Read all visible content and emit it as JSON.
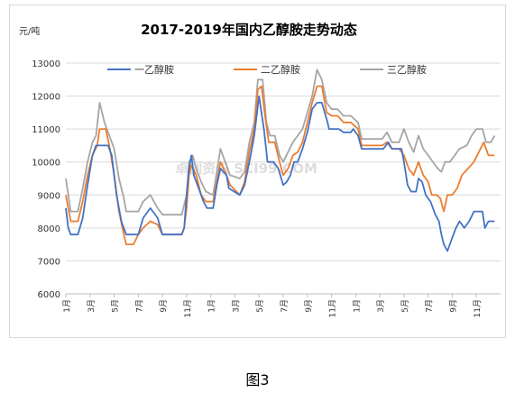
{
  "caption": "图3",
  "chart_data": {
    "type": "line",
    "title": "2017-2019年国内乙醇胺走势动态",
    "ylabel": "元/吨",
    "xlabel": "",
    "ylim": [
      6000,
      13000
    ],
    "yticks": [
      6000,
      7000,
      8000,
      9000,
      10000,
      11000,
      12000,
      13000
    ],
    "xlim": [
      0,
      36
    ],
    "x_tick_labels": [
      "1月",
      "3月",
      "5月",
      "7月",
      "9月",
      "11月",
      "1月",
      "3月",
      "5月",
      "7月",
      "9月",
      "11月",
      "1月",
      "3月",
      "5月",
      "7月",
      "9月",
      "11月"
    ],
    "grid": "horizontal",
    "legend_position": "top",
    "watermark": "卓创资讯 SCI99.COM",
    "colors": {
      "一乙醇胺": "#4472c4",
      "二乙醇胺": "#ed7d31",
      "三乙醇胺": "#a5a5a5"
    },
    "series": [
      {
        "name": "一乙醇胺",
        "points": [
          [
            0,
            8600
          ],
          [
            0.2,
            8000
          ],
          [
            0.4,
            7800
          ],
          [
            1,
            7800
          ],
          [
            1.4,
            8300
          ],
          [
            1.8,
            9300
          ],
          [
            2.2,
            10200
          ],
          [
            2.5,
            10500
          ],
          [
            3.5,
            10500
          ],
          [
            3.8,
            10200
          ],
          [
            4.2,
            9000
          ],
          [
            4.6,
            8200
          ],
          [
            5,
            7800
          ],
          [
            6,
            7800
          ],
          [
            6.4,
            8300
          ],
          [
            7,
            8600
          ],
          [
            7.6,
            8300
          ],
          [
            8,
            7800
          ],
          [
            9.6,
            7800
          ],
          [
            9.8,
            8000
          ],
          [
            10,
            9000
          ],
          [
            10.2,
            9800
          ],
          [
            10.4,
            10200
          ],
          [
            10.6,
            9600
          ],
          [
            11,
            9200
          ],
          [
            11.4,
            8800
          ],
          [
            11.7,
            8600
          ],
          [
            12.2,
            8600
          ],
          [
            12.5,
            9300
          ],
          [
            12.8,
            9800
          ],
          [
            13.3,
            9600
          ],
          [
            13.5,
            9200
          ],
          [
            14.4,
            9000
          ],
          [
            14.8,
            9300
          ],
          [
            15.3,
            10200
          ],
          [
            15.6,
            10800
          ],
          [
            16,
            12000
          ],
          [
            16.4,
            11000
          ],
          [
            16.7,
            10000
          ],
          [
            17.2,
            10000
          ],
          [
            17.6,
            9800
          ],
          [
            18,
            9300
          ],
          [
            18.3,
            9400
          ],
          [
            18.6,
            9600
          ],
          [
            18.9,
            10000
          ],
          [
            19.2,
            10000
          ],
          [
            19.6,
            10400
          ],
          [
            20,
            10900
          ],
          [
            20.4,
            11600
          ],
          [
            20.8,
            11800
          ],
          [
            21.2,
            11800
          ],
          [
            21.6,
            11300
          ],
          [
            21.8,
            11000
          ],
          [
            22.2,
            11000
          ],
          [
            22.6,
            11000
          ],
          [
            23,
            10900
          ],
          [
            23.6,
            10900
          ],
          [
            23.8,
            11000
          ],
          [
            24.2,
            10800
          ],
          [
            24.5,
            10400
          ],
          [
            25.3,
            10400
          ],
          [
            25.8,
            10400
          ],
          [
            26.3,
            10400
          ],
          [
            26.7,
            10600
          ],
          [
            27,
            10400
          ],
          [
            27.3,
            10400
          ],
          [
            27.8,
            10400
          ],
          [
            28,
            10000
          ],
          [
            28.3,
            9300
          ],
          [
            28.6,
            9100
          ],
          [
            29,
            9100
          ],
          [
            29.2,
            9500
          ],
          [
            29.5,
            9400
          ],
          [
            29.8,
            9000
          ],
          [
            30.2,
            8800
          ],
          [
            30.6,
            8400
          ],
          [
            30.9,
            8200
          ],
          [
            31.1,
            7800
          ],
          [
            31.3,
            7500
          ],
          [
            31.6,
            7300
          ],
          [
            32,
            7700
          ],
          [
            32.3,
            8000
          ],
          [
            32.6,
            8200
          ],
          [
            33,
            8000
          ],
          [
            33.4,
            8200
          ],
          [
            33.8,
            8500
          ],
          [
            34.5,
            8500
          ],
          [
            34.7,
            8000
          ],
          [
            35,
            8200
          ],
          [
            35.5,
            8200
          ]
        ]
      },
      {
        "name": "二乙醇胺",
        "points": [
          [
            0,
            9000
          ],
          [
            0.2,
            8600
          ],
          [
            0.4,
            8200
          ],
          [
            1,
            8200
          ],
          [
            1.4,
            8800
          ],
          [
            1.8,
            9600
          ],
          [
            2.2,
            10200
          ],
          [
            2.6,
            10500
          ],
          [
            2.8,
            11000
          ],
          [
            3.3,
            11000
          ],
          [
            3.6,
            10500
          ],
          [
            4,
            9600
          ],
          [
            4.4,
            8500
          ],
          [
            4.8,
            7800
          ],
          [
            5,
            7500
          ],
          [
            5.6,
            7500
          ],
          [
            6,
            7800
          ],
          [
            6.4,
            8000
          ],
          [
            7,
            8200
          ],
          [
            7.6,
            8100
          ],
          [
            8,
            7800
          ],
          [
            9.6,
            7800
          ],
          [
            9.8,
            8000
          ],
          [
            10,
            8600
          ],
          [
            10.2,
            9600
          ],
          [
            10.4,
            9900
          ],
          [
            10.8,
            9600
          ],
          [
            11.2,
            9000
          ],
          [
            11.6,
            8800
          ],
          [
            12.2,
            8800
          ],
          [
            12.5,
            9400
          ],
          [
            12.8,
            10000
          ],
          [
            13.2,
            9700
          ],
          [
            13.6,
            9300
          ],
          [
            14.4,
            9000
          ],
          [
            14.8,
            9400
          ],
          [
            15.2,
            10300
          ],
          [
            15.6,
            11000
          ],
          [
            15.9,
            12200
          ],
          [
            16.2,
            12300
          ],
          [
            16.5,
            11400
          ],
          [
            16.8,
            10600
          ],
          [
            17.3,
            10600
          ],
          [
            17.7,
            10000
          ],
          [
            18,
            9600
          ],
          [
            18.4,
            9800
          ],
          [
            18.8,
            10200
          ],
          [
            19.2,
            10300
          ],
          [
            19.6,
            10600
          ],
          [
            20,
            11200
          ],
          [
            20.4,
            11800
          ],
          [
            20.8,
            12300
          ],
          [
            21.2,
            12300
          ],
          [
            21.6,
            11500
          ],
          [
            22,
            11400
          ],
          [
            22.5,
            11400
          ],
          [
            23,
            11200
          ],
          [
            23.6,
            11200
          ],
          [
            24.2,
            11000
          ],
          [
            24.5,
            10500
          ],
          [
            25.5,
            10500
          ],
          [
            26.2,
            10500
          ],
          [
            26.6,
            10600
          ],
          [
            27,
            10400
          ],
          [
            27.6,
            10400
          ],
          [
            28,
            10200
          ],
          [
            28.4,
            9800
          ],
          [
            28.8,
            9600
          ],
          [
            29.2,
            10000
          ],
          [
            29.6,
            9600
          ],
          [
            30,
            9400
          ],
          [
            30.3,
            9000
          ],
          [
            30.7,
            9000
          ],
          [
            31,
            8900
          ],
          [
            31.3,
            8500
          ],
          [
            31.6,
            9000
          ],
          [
            32,
            9000
          ],
          [
            32.4,
            9200
          ],
          [
            32.8,
            9600
          ],
          [
            33.3,
            9800
          ],
          [
            33.8,
            10000
          ],
          [
            34.2,
            10300
          ],
          [
            34.6,
            10600
          ],
          [
            34.8,
            10400
          ],
          [
            35,
            10200
          ],
          [
            35.5,
            10200
          ]
        ]
      },
      {
        "name": "三乙醇胺",
        "points": [
          [
            0,
            9500
          ],
          [
            0.2,
            9000
          ],
          [
            0.4,
            8500
          ],
          [
            1,
            8500
          ],
          [
            1.4,
            9200
          ],
          [
            1.8,
            10000
          ],
          [
            2.2,
            10600
          ],
          [
            2.5,
            10800
          ],
          [
            2.8,
            11800
          ],
          [
            3.2,
            11200
          ],
          [
            3.6,
            10800
          ],
          [
            4,
            10400
          ],
          [
            4.4,
            9500
          ],
          [
            4.8,
            8900
          ],
          [
            5,
            8500
          ],
          [
            6,
            8500
          ],
          [
            6.4,
            8800
          ],
          [
            7,
            9000
          ],
          [
            7.6,
            8600
          ],
          [
            8,
            8400
          ],
          [
            9.6,
            8400
          ],
          [
            9.8,
            8700
          ],
          [
            10,
            9000
          ],
          [
            10.2,
            10000
          ],
          [
            10.5,
            10200
          ],
          [
            10.8,
            9800
          ],
          [
            11.2,
            9400
          ],
          [
            11.6,
            9100
          ],
          [
            12.2,
            9000
          ],
          [
            12.5,
            9700
          ],
          [
            12.8,
            10400
          ],
          [
            13.2,
            10000
          ],
          [
            13.6,
            9600
          ],
          [
            14.4,
            9500
          ],
          [
            14.8,
            9700
          ],
          [
            15.2,
            10600
          ],
          [
            15.6,
            11200
          ],
          [
            15.9,
            12500
          ],
          [
            16.3,
            12500
          ],
          [
            16.6,
            11200
          ],
          [
            16.9,
            10800
          ],
          [
            17.3,
            10800
          ],
          [
            17.7,
            10200
          ],
          [
            18,
            10000
          ],
          [
            18.4,
            10300
          ],
          [
            18.8,
            10600
          ],
          [
            19.2,
            10800
          ],
          [
            19.6,
            11000
          ],
          [
            20,
            11500
          ],
          [
            20.4,
            12000
          ],
          [
            20.8,
            12800
          ],
          [
            21.2,
            12500
          ],
          [
            21.6,
            11800
          ],
          [
            22,
            11600
          ],
          [
            22.5,
            11600
          ],
          [
            23,
            11400
          ],
          [
            23.6,
            11400
          ],
          [
            24.2,
            11200
          ],
          [
            24.5,
            10700
          ],
          [
            25.5,
            10700
          ],
          [
            26.2,
            10700
          ],
          [
            26.6,
            10900
          ],
          [
            27,
            10600
          ],
          [
            27.6,
            10600
          ],
          [
            28,
            11000
          ],
          [
            28.4,
            10600
          ],
          [
            28.8,
            10300
          ],
          [
            29.2,
            10800
          ],
          [
            29.6,
            10400
          ],
          [
            30,
            10200
          ],
          [
            30.4,
            10000
          ],
          [
            30.8,
            9800
          ],
          [
            31.1,
            9700
          ],
          [
            31.4,
            10000
          ],
          [
            31.8,
            10000
          ],
          [
            32.2,
            10200
          ],
          [
            32.6,
            10400
          ],
          [
            33.2,
            10500
          ],
          [
            33.6,
            10800
          ],
          [
            34,
            11000
          ],
          [
            34.5,
            11000
          ],
          [
            34.8,
            10600
          ],
          [
            35.2,
            10600
          ],
          [
            35.5,
            10800
          ]
        ]
      }
    ]
  }
}
